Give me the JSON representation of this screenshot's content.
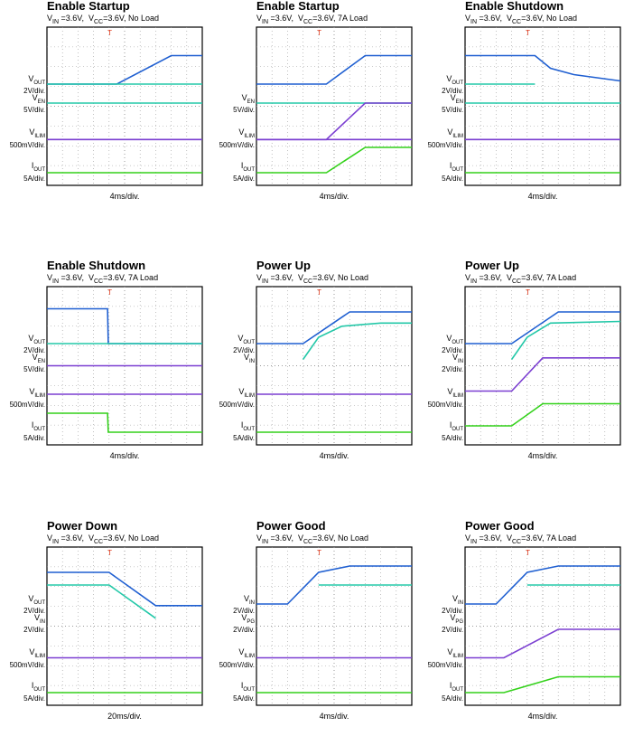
{
  "colors": {
    "vout": "#1f5fd1",
    "ven": "#23c8a8",
    "vilim": "#7b3fd1",
    "iout": "#33d11a",
    "grid": "#9a9a9a",
    "trigger": "#e03010"
  },
  "panels": [
    {
      "title": "Enable Startup",
      "sub_vin": "V<sub>IN</sub> =3.6V,",
      "sub_vcc": "V<sub>CC</sub>=3.6V, No Load",
      "timebase": "4ms/div.",
      "channels": [
        {
          "name": "V<sub>OUT</sub>",
          "scale": "2V/div.",
          "color": "vout",
          "y": [
            [
              0,
              0.36
            ],
            [
              0.45,
              0.36
            ],
            [
              0.8,
              0.18
            ],
            [
              1,
              0.18
            ]
          ]
        },
        {
          "name": "",
          "scale": "",
          "color": "ven",
          "y": [
            [
              0,
              0.36
            ],
            [
              1,
              0.36
            ]
          ]
        },
        {
          "name": "V<sub>EN</sub>",
          "scale": "5V/div.",
          "color": "ven",
          "y": [
            [
              0,
              0.48
            ],
            [
              1,
              0.48
            ]
          ]
        },
        {
          "name": "V<sub>ILIM</sub>",
          "scale": "500mV/div.",
          "color": "vilim",
          "y": [
            [
              0,
              0.71
            ],
            [
              1,
              0.71
            ]
          ]
        },
        {
          "name": "I<sub>OUT</sub>",
          "scale": "5A/div.",
          "color": "iout",
          "y": [
            [
              0,
              0.92
            ],
            [
              1,
              0.92
            ]
          ]
        }
      ]
    },
    {
      "title": "Enable Startup",
      "sub_vin": "V<sub>IN</sub> =3.6V,",
      "sub_vcc": "V<sub>CC</sub>=3.6V, 7A Load",
      "timebase": "4ms/div.",
      "channels": [
        {
          "name": "",
          "scale": "",
          "color": "vout",
          "y": [
            [
              0,
              0.36
            ],
            [
              0.45,
              0.36
            ],
            [
              0.7,
              0.18
            ],
            [
              1,
              0.18
            ]
          ]
        },
        {
          "name": "",
          "scale": "",
          "color": "ven",
          "y": [
            [
              0,
              0.48
            ],
            [
              1,
              0.48
            ]
          ]
        },
        {
          "name": "V<sub>EN</sub>",
          "scale": "5V/div.",
          "color": "vilim",
          "y": [
            [
              0,
              0.71
            ],
            [
              0.45,
              0.71
            ],
            [
              0.7,
              0.48
            ],
            [
              1,
              0.48
            ]
          ]
        },
        {
          "name": "V<sub>ILIM</sub>",
          "scale": "500mV/div.",
          "color": "vilim",
          "y": [
            [
              0,
              0.71
            ],
            [
              1,
              0.71
            ]
          ]
        },
        {
          "name": "I<sub>OUT</sub>",
          "scale": "5A/div.",
          "color": "iout",
          "y": [
            [
              0,
              0.92
            ],
            [
              0.45,
              0.92
            ],
            [
              0.7,
              0.76
            ],
            [
              1,
              0.76
            ]
          ]
        }
      ]
    },
    {
      "title": "Enable Shutdown",
      "sub_vin": "V<sub>IN</sub> =3.6V,",
      "sub_vcc": "V<sub>CC</sub>=3.6V, No Load",
      "timebase": "4ms/div.",
      "channels": [
        {
          "name": "V<sub>OUT</sub>",
          "scale": "2V/div.",
          "color": "vout",
          "y": [
            [
              0,
              0.18
            ],
            [
              0.45,
              0.18
            ],
            [
              0.55,
              0.26
            ],
            [
              0.7,
              0.3
            ],
            [
              1,
              0.34
            ]
          ]
        },
        {
          "name": "",
          "scale": "",
          "color": "ven",
          "y": [
            [
              0,
              0.36
            ],
            [
              0.45,
              0.36
            ]
          ]
        },
        {
          "name": "V<sub>EN</sub>",
          "scale": "5V/div.",
          "color": "ven",
          "y": [
            [
              0,
              0.48
            ],
            [
              1,
              0.48
            ]
          ]
        },
        {
          "name": "V<sub>ILIM</sub>",
          "scale": "500mV/div.",
          "color": "vilim",
          "y": [
            [
              0,
              0.71
            ],
            [
              1,
              0.71
            ]
          ]
        },
        {
          "name": "I<sub>OUT</sub>",
          "scale": "5A/div.",
          "color": "iout",
          "y": [
            [
              0,
              0.92
            ],
            [
              1,
              0.92
            ]
          ]
        }
      ]
    },
    {
      "title": "Enable Shutdown",
      "sub_vin": "V<sub>IN</sub> =3.6V,",
      "sub_vcc": "V<sub>CC</sub>=3.6V, 7A Load",
      "timebase": "4ms/div.",
      "channels": [
        {
          "name": "V<sub>OUT</sub>",
          "scale": "2V/div.",
          "color": "vout",
          "y": [
            [
              0,
              0.14
            ],
            [
              0.39,
              0.14
            ],
            [
              0.395,
              0.36
            ],
            [
              1,
              0.36
            ]
          ]
        },
        {
          "name": "V<sub>EN</sub>",
          "scale": "5V/div.",
          "color": "ven",
          "y": [
            [
              0,
              0.36
            ],
            [
              1,
              0.36
            ]
          ]
        },
        {
          "name": "",
          "scale": "",
          "color": "vilim",
          "y": [
            [
              0,
              0.5
            ],
            [
              1,
              0.5
            ]
          ]
        },
        {
          "name": "V<sub>ILIM</sub>",
          "scale": "500mV/div.",
          "color": "vilim",
          "y": [
            [
              0,
              0.68
            ],
            [
              1,
              0.68
            ]
          ]
        },
        {
          "name": "I<sub>OUT</sub>",
          "scale": "5A/div.",
          "color": "iout",
          "y": [
            [
              0,
              0.8
            ],
            [
              0.39,
              0.8
            ],
            [
              0.395,
              0.92
            ],
            [
              1,
              0.92
            ]
          ]
        }
      ]
    },
    {
      "title": "Power Up",
      "sub_vin": "V<sub>IN</sub> =3.6V,",
      "sub_vcc": "V<sub>CC</sub>=3.6V, No Load",
      "timebase": "4ms/div.",
      "channels": [
        {
          "name": "V<sub>OUT</sub>",
          "scale": "2V/div.",
          "color": "vout",
          "y": [
            [
              0,
              0.36
            ],
            [
              0.3,
              0.36
            ],
            [
              0.6,
              0.16
            ],
            [
              1,
              0.16
            ]
          ]
        },
        {
          "name": "V<sub>IN</sub>",
          "scale": "",
          "color": "ven",
          "y": [
            [
              0.3,
              0.46
            ],
            [
              0.4,
              0.32
            ],
            [
              0.55,
              0.25
            ],
            [
              0.8,
              0.23
            ],
            [
              1,
              0.23
            ]
          ]
        },
        {
          "name": "",
          "scale": "",
          "color": "grid",
          "y": []
        },
        {
          "name": "V<sub>ILIM</sub>",
          "scale": "500mV/div.",
          "color": "vilim",
          "y": [
            [
              0,
              0.68
            ],
            [
              1,
              0.68
            ]
          ]
        },
        {
          "name": "I<sub>OUT</sub>",
          "scale": "5A/div.",
          "color": "iout",
          "y": [
            [
              0,
              0.92
            ],
            [
              1,
              0.92
            ]
          ]
        }
      ]
    },
    {
      "title": "Power Up",
      "sub_vin": "V<sub>IN</sub> =3.6V,",
      "sub_vcc": "V<sub>CC</sub>=3.6V, 7A Load",
      "timebase": "4ms/div.",
      "channels": [
        {
          "name": "V<sub>OUT</sub>",
          "scale": "2V/div.",
          "color": "vout",
          "y": [
            [
              0,
              0.36
            ],
            [
              0.3,
              0.36
            ],
            [
              0.6,
              0.16
            ],
            [
              1,
              0.16
            ]
          ]
        },
        {
          "name": "V<sub>IN</sub>",
          "scale": "2V/div.",
          "color": "ven",
          "y": [
            [
              0.3,
              0.46
            ],
            [
              0.4,
              0.32
            ],
            [
              0.55,
              0.23
            ],
            [
              1,
              0.22
            ]
          ]
        },
        {
          "name": "",
          "scale": "",
          "color": "vilim",
          "y": [
            [
              0,
              0.66
            ],
            [
              0.3,
              0.66
            ],
            [
              0.5,
              0.45
            ],
            [
              1,
              0.45
            ]
          ]
        },
        {
          "name": "V<sub>ILIM</sub>",
          "scale": "500mV/div.",
          "color": "vilim",
          "y": []
        },
        {
          "name": "I<sub>OUT</sub>",
          "scale": "5A/div.",
          "color": "iout",
          "y": [
            [
              0,
              0.88
            ],
            [
              0.3,
              0.88
            ],
            [
              0.5,
              0.74
            ],
            [
              1,
              0.74
            ]
          ]
        }
      ]
    },
    {
      "title": "Power Down",
      "sub_vin": "V<sub>IN</sub> =3.6V,",
      "sub_vcc": "V<sub>CC</sub>=3.6V, No Load",
      "timebase": "20ms/div.",
      "channels": [
        {
          "name": "V<sub>OUT</sub>",
          "scale": "2V/div.",
          "color": "vout",
          "y": [
            [
              0,
              0.16
            ],
            [
              0.4,
              0.16
            ],
            [
              0.7,
              0.37
            ],
            [
              1,
              0.37
            ]
          ]
        },
        {
          "name": "",
          "scale": "",
          "color": "ven",
          "y": [
            [
              0,
              0.24
            ],
            [
              0.4,
              0.24
            ],
            [
              0.7,
              0.45
            ]
          ]
        },
        {
          "name": "V<sub>IN</sub>",
          "scale": "2V/div.",
          "color": "grid",
          "y": []
        },
        {
          "name": "V<sub>ILIM</sub>",
          "scale": "500mV/div.",
          "color": "vilim",
          "y": [
            [
              0,
              0.7
            ],
            [
              1,
              0.7
            ]
          ]
        },
        {
          "name": "I<sub>OUT</sub>",
          "scale": "5A/div.",
          "color": "iout",
          "y": [
            [
              0,
              0.92
            ],
            [
              1,
              0.92
            ]
          ]
        }
      ]
    },
    {
      "title": "Power Good",
      "sub_vin": "V<sub>IN</sub> =3.6V,",
      "sub_vcc": "V<sub>CC</sub>=3.6V, No Load",
      "timebase": "4ms/div.",
      "channels": [
        {
          "name": "V<sub>IN</sub>",
          "scale": "2V/div.",
          "color": "vout",
          "y": [
            [
              0,
              0.36
            ],
            [
              0.2,
              0.36
            ],
            [
              0.4,
              0.16
            ],
            [
              0.6,
              0.12
            ],
            [
              1,
              0.12
            ]
          ]
        },
        {
          "name": "V<sub>PG</sub>",
          "scale": "2V/div.",
          "color": "ven",
          "y": [
            [
              0.4,
              0.24
            ],
            [
              1,
              0.24
            ]
          ]
        },
        {
          "name": "",
          "scale": "",
          "color": "grid",
          "y": []
        },
        {
          "name": "V<sub>ILIM</sub>",
          "scale": "500mV/div.",
          "color": "vilim",
          "y": [
            [
              0,
              0.7
            ],
            [
              1,
              0.7
            ]
          ]
        },
        {
          "name": "I<sub>OUT</sub>",
          "scale": "5A/div.",
          "color": "iout",
          "y": [
            [
              0,
              0.92
            ],
            [
              1,
              0.92
            ]
          ]
        }
      ]
    },
    {
      "title": "Power Good",
      "sub_vin": "V<sub>IN</sub> =3.6V,",
      "sub_vcc": "V<sub>CC</sub>=3.6V, 7A Load",
      "timebase": "4ms/div.",
      "channels": [
        {
          "name": "V<sub>IN</sub>",
          "scale": "2V/div.",
          "color": "vout",
          "y": [
            [
              0,
              0.36
            ],
            [
              0.2,
              0.36
            ],
            [
              0.4,
              0.16
            ],
            [
              0.6,
              0.12
            ],
            [
              1,
              0.12
            ]
          ]
        },
        {
          "name": "V<sub>PG</sub>",
          "scale": "2V/div.",
          "color": "ven",
          "y": [
            [
              0.4,
              0.24
            ],
            [
              1,
              0.24
            ]
          ]
        },
        {
          "name": "",
          "scale": "",
          "color": "vilim",
          "y": [
            [
              0,
              0.7
            ],
            [
              0.25,
              0.7
            ],
            [
              0.6,
              0.52
            ],
            [
              1,
              0.52
            ]
          ]
        },
        {
          "name": "V<sub>ILIM</sub>",
          "scale": "500mV/div.",
          "color": "grid",
          "y": []
        },
        {
          "name": "I<sub>OUT</sub>",
          "scale": "5A/div.",
          "color": "iout",
          "y": [
            [
              0,
              0.92
            ],
            [
              0.25,
              0.92
            ],
            [
              0.6,
              0.82
            ],
            [
              1,
              0.82
            ]
          ]
        }
      ]
    }
  ],
  "chart_data": [
    {
      "type": "line",
      "title": "Enable Startup",
      "subtitle": "VIN =3.6V, VCC=3.6V, No Load",
      "xlabel": "4ms/div."
    },
    {
      "type": "line",
      "title": "Enable Startup",
      "subtitle": "VIN =3.6V, VCC=3.6V, 7A Load",
      "xlabel": "4ms/div."
    },
    {
      "type": "line",
      "title": "Enable Shutdown",
      "subtitle": "VIN =3.6V, VCC=3.6V, No Load",
      "xlabel": "4ms/div."
    },
    {
      "type": "line",
      "title": "Enable Shutdown",
      "subtitle": "VIN =3.6V, VCC=3.6V, 7A Load",
      "xlabel": "4ms/div."
    },
    {
      "type": "line",
      "title": "Power Up",
      "subtitle": "VIN =3.6V, VCC=3.6V, No Load",
      "xlabel": "4ms/div."
    },
    {
      "type": "line",
      "title": "Power Up",
      "subtitle": "VIN =3.6V, VCC=3.6V, 7A Load",
      "xlabel": "4ms/div."
    },
    {
      "type": "line",
      "title": "Power Down",
      "subtitle": "VIN =3.6V, VCC=3.6V, No Load",
      "xlabel": "20ms/div."
    },
    {
      "type": "line",
      "title": "Power Good",
      "subtitle": "VIN =3.6V, VCC=3.6V, No Load",
      "xlabel": "4ms/div."
    },
    {
      "type": "line",
      "title": "Power Good",
      "subtitle": "VIN =3.6V, VCC=3.6V, 7A Load",
      "xlabel": "4ms/div."
    }
  ]
}
